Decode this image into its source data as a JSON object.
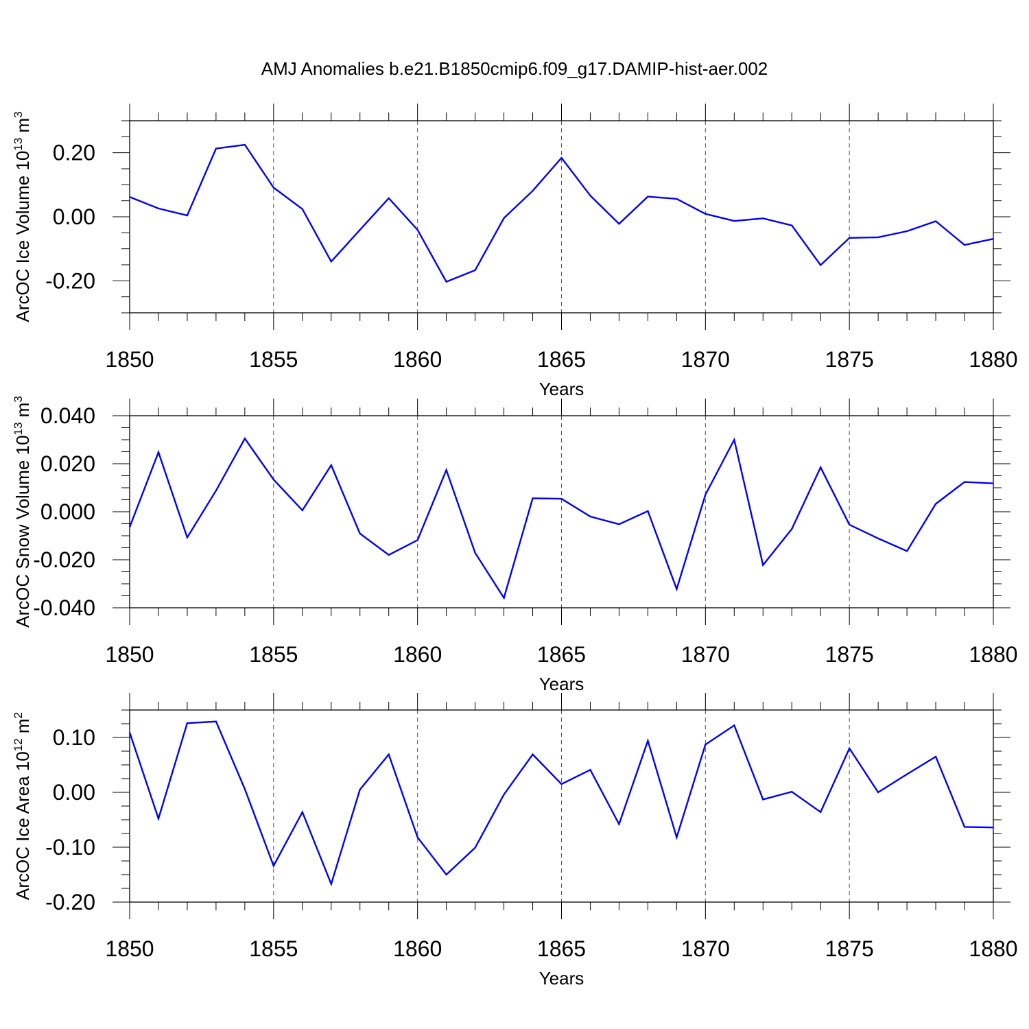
{
  "title": "AMJ Anomalies b.e21.B1850cmip6.f09_g17.DAMIP-hist-aer.002",
  "chart_data": [
    {
      "type": "line",
      "ylabel": {
        "text": "ArcOC Ice Volume 10",
        "exp": "13",
        "unit": " m",
        "unit_exp": "3"
      },
      "xlabel": "Years",
      "xlim": [
        1850,
        1880
      ],
      "ylim": [
        -0.3,
        0.3
      ],
      "y_ticks": [
        -0.2,
        0.0,
        0.2
      ],
      "y_tick_labels": [
        "-0.20",
        "0.00",
        "0.20"
      ],
      "x_ticks": [
        1850,
        1855,
        1860,
        1865,
        1870,
        1875,
        1880
      ],
      "x_tick_labels": [
        "1850",
        "1855",
        "1860",
        "1865",
        "1870",
        "1875",
        "1880"
      ],
      "line_color": "#0000ff",
      "grid": "dashed vertical at major x ticks",
      "x": [
        1850,
        1851,
        1852,
        1853,
        1854,
        1855,
        1856,
        1857,
        1858,
        1859,
        1860,
        1861,
        1862,
        1863,
        1864,
        1865,
        1866,
        1867,
        1868,
        1869,
        1870,
        1871,
        1872,
        1873,
        1874,
        1875,
        1876,
        1877,
        1878,
        1879,
        1880
      ],
      "y": [
        0.062,
        0.026,
        0.004,
        0.213,
        0.225,
        0.091,
        0.024,
        -0.14,
        -0.041,
        0.058,
        -0.041,
        -0.203,
        -0.167,
        -0.004,
        0.081,
        0.184,
        0.066,
        -0.022,
        0.063,
        0.056,
        0.009,
        -0.013,
        -0.005,
        -0.027,
        -0.151,
        -0.066,
        -0.064,
        -0.045,
        -0.014,
        -0.088,
        -0.069
      ]
    },
    {
      "type": "line",
      "ylabel": {
        "text": "ArcOC Snow Volume 10",
        "exp": "13",
        "unit": " m",
        "unit_exp": "3"
      },
      "xlabel": "Years",
      "xlim": [
        1850,
        1880
      ],
      "ylim": [
        -0.04,
        0.04
      ],
      "y_ticks": [
        -0.04,
        -0.02,
        0.0,
        0.02,
        0.04
      ],
      "y_tick_labels": [
        "-0.040",
        "-0.020",
        "0.000",
        "0.020",
        "0.040"
      ],
      "x_ticks": [
        1850,
        1855,
        1860,
        1865,
        1870,
        1875,
        1880
      ],
      "x_tick_labels": [
        "1850",
        "1855",
        "1860",
        "1865",
        "1870",
        "1875",
        "1880"
      ],
      "line_color": "#0000ff",
      "grid": "dashed vertical at major x ticks",
      "x": [
        1850,
        1851,
        1852,
        1853,
        1854,
        1855,
        1856,
        1857,
        1858,
        1859,
        1860,
        1861,
        1862,
        1863,
        1864,
        1865,
        1866,
        1867,
        1868,
        1869,
        1870,
        1871,
        1872,
        1873,
        1874,
        1875,
        1876,
        1877,
        1878,
        1879,
        1880
      ],
      "y": [
        -0.0064,
        0.0248,
        -0.0107,
        0.0088,
        0.0305,
        0.0134,
        0.0006,
        0.0194,
        -0.0091,
        -0.018,
        -0.0118,
        0.0174,
        -0.0171,
        -0.0359,
        0.0056,
        0.0054,
        -0.002,
        -0.0052,
        0.0003,
        -0.0322,
        0.0071,
        0.03,
        -0.0222,
        -0.0072,
        0.0185,
        -0.0054,
        -0.0111,
        -0.0164,
        0.0033,
        0.0124,
        0.0118
      ]
    },
    {
      "type": "line",
      "ylabel": {
        "text": "ArcOC Ice Area 10",
        "exp": "12",
        "unit": " m",
        "unit_exp": "2"
      },
      "xlabel": "Years",
      "xlim": [
        1850,
        1880
      ],
      "ylim": [
        -0.2,
        0.15
      ],
      "y_ticks": [
        -0.2,
        -0.1,
        0.0,
        0.1
      ],
      "y_tick_labels": [
        "-0.20",
        "-0.10",
        "0.00",
        "0.10"
      ],
      "x_ticks": [
        1850,
        1855,
        1860,
        1865,
        1870,
        1875,
        1880
      ],
      "x_tick_labels": [
        "1850",
        "1855",
        "1860",
        "1865",
        "1870",
        "1875",
        "1880"
      ],
      "line_color": "#0000ff",
      "grid": "dashed vertical at major x ticks",
      "x": [
        1850,
        1851,
        1852,
        1853,
        1854,
        1855,
        1856,
        1857,
        1858,
        1859,
        1860,
        1861,
        1862,
        1863,
        1864,
        1865,
        1866,
        1867,
        1868,
        1869,
        1870,
        1871,
        1872,
        1873,
        1874,
        1875,
        1876,
        1877,
        1878,
        1879,
        1880
      ],
      "y": [
        0.109,
        -0.048,
        0.126,
        0.129,
        0.006,
        -0.134,
        -0.036,
        -0.167,
        0.005,
        0.069,
        -0.082,
        -0.15,
        -0.101,
        -0.004,
        0.069,
        0.015,
        0.041,
        -0.058,
        0.094,
        -0.082,
        0.087,
        0.122,
        -0.013,
        0.001,
        -0.036,
        0.08,
        0.0,
        0.033,
        0.065,
        -0.063,
        -0.064
      ]
    }
  ]
}
